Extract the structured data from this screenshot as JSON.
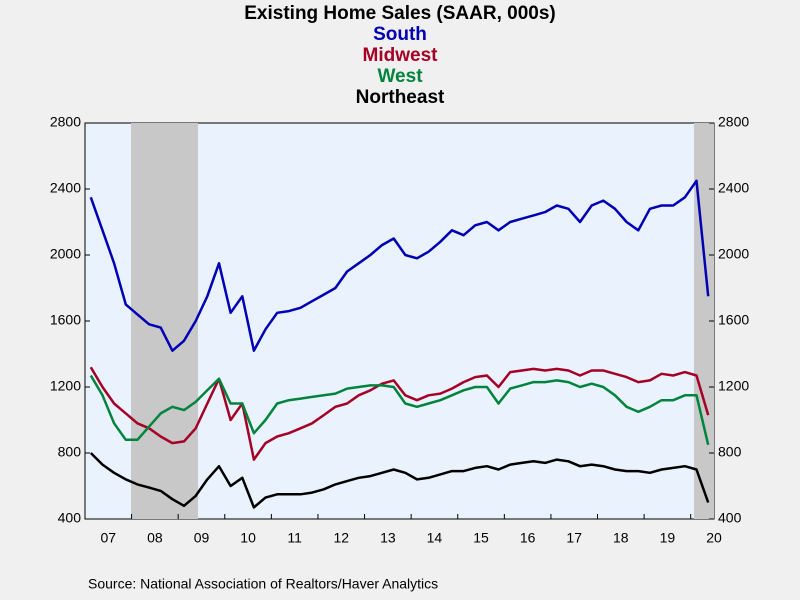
{
  "chart_data": {
    "type": "line",
    "title": "Existing Home Sales (SAAR, 000s)",
    "source": "Source:  National Association of Realtors/Haver Analytics",
    "categories": [
      null,
      "07",
      null,
      null,
      null,
      "08",
      null,
      null,
      null,
      "09",
      null,
      null,
      null,
      "10",
      null,
      null,
      null,
      "11",
      null,
      null,
      null,
      "12",
      null,
      null,
      null,
      "13",
      null,
      null,
      null,
      "14",
      null,
      null,
      null,
      "15",
      null,
      null,
      null,
      "16",
      null,
      null,
      null,
      "17",
      null,
      null,
      null,
      "18",
      null,
      null,
      null,
      "19",
      null,
      null,
      null,
      "20"
    ],
    "series": [
      {
        "name": "South",
        "color": "#0000b4",
        "values": [
          2350,
          2150,
          1950,
          1700,
          1640,
          1580,
          1560,
          1420,
          1480,
          1600,
          1750,
          1950,
          1650,
          1750,
          1420,
          1550,
          1650,
          1660,
          1680,
          1720,
          1760,
          1800,
          1900,
          1950,
          2000,
          2060,
          2100,
          2000,
          1980,
          2020,
          2080,
          2150,
          2120,
          2180,
          2200,
          2150,
          2200,
          2220,
          2240,
          2260,
          2300,
          2280,
          2200,
          2300,
          2330,
          2280,
          2200,
          2150,
          2280,
          2300,
          2300,
          2350,
          2450,
          1750
        ]
      },
      {
        "name": "Midwest",
        "color": "#a50026",
        "values": [
          1320,
          1200,
          1100,
          1040,
          980,
          950,
          900,
          860,
          870,
          950,
          1100,
          1250,
          1000,
          1100,
          760,
          860,
          900,
          920,
          950,
          980,
          1030,
          1080,
          1100,
          1150,
          1180,
          1220,
          1240,
          1150,
          1120,
          1150,
          1160,
          1190,
          1230,
          1260,
          1270,
          1200,
          1290,
          1300,
          1310,
          1300,
          1310,
          1300,
          1270,
          1300,
          1300,
          1280,
          1260,
          1230,
          1240,
          1280,
          1270,
          1290,
          1270,
          1030
        ]
      },
      {
        "name": "West",
        "color": "#00843d",
        "values": [
          1270,
          1150,
          980,
          880,
          880,
          960,
          1040,
          1080,
          1060,
          1110,
          1180,
          1250,
          1100,
          1100,
          920,
          1000,
          1100,
          1120,
          1130,
          1140,
          1150,
          1160,
          1190,
          1200,
          1210,
          1210,
          1200,
          1100,
          1080,
          1100,
          1120,
          1150,
          1180,
          1200,
          1200,
          1100,
          1190,
          1210,
          1230,
          1230,
          1240,
          1230,
          1200,
          1220,
          1200,
          1150,
          1080,
          1050,
          1080,
          1120,
          1120,
          1150,
          1150,
          850
        ]
      },
      {
        "name": "Northeast",
        "color": "#000000",
        "values": [
          800,
          730,
          680,
          640,
          610,
          590,
          570,
          520,
          480,
          540,
          640,
          720,
          600,
          650,
          470,
          530,
          550,
          550,
          550,
          560,
          580,
          610,
          630,
          650,
          660,
          680,
          700,
          680,
          640,
          650,
          670,
          690,
          690,
          710,
          720,
          700,
          730,
          740,
          750,
          740,
          760,
          750,
          720,
          730,
          720,
          700,
          690,
          690,
          680,
          700,
          710,
          720,
          700,
          500
        ]
      }
    ],
    "ylim": [
      400,
      2800
    ],
    "yticks": [
      400,
      800,
      1200,
      1600,
      2000,
      2400,
      2800
    ]
  }
}
